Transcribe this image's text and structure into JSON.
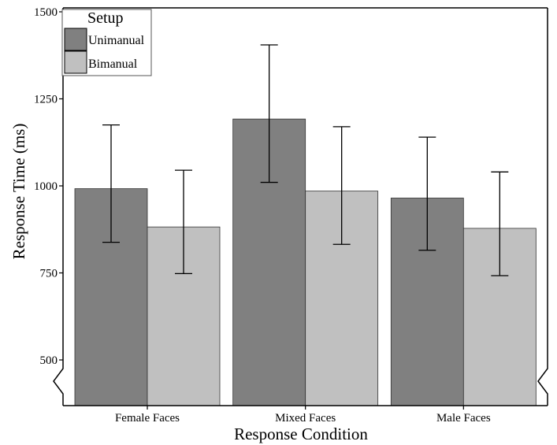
{
  "chart_data": {
    "type": "bar",
    "categories": [
      "Female Faces",
      "Mixed Faces",
      "Male Faces"
    ],
    "series": [
      {
        "name": "Unimanual",
        "color": "#808080",
        "values": [
          992,
          1192,
          965
        ],
        "error_low": [
          838,
          1010,
          815
        ],
        "error_high": [
          1175,
          1405,
          1140
        ]
      },
      {
        "name": "Bimanual",
        "color": "#c0c0c0",
        "values": [
          882,
          985,
          878
        ],
        "error_low": [
          748,
          832,
          742
        ],
        "error_high": [
          1045,
          1170,
          1040
        ]
      }
    ],
    "xlabel": "Response Condition",
    "ylabel": "Response Time (ms)",
    "ylim": [
      500,
      1500
    ],
    "y_ticks": [
      "500",
      "750",
      "1000",
      "1250",
      "1500"
    ],
    "y_axis_break": true,
    "grid": false,
    "legend": {
      "title": "Setup",
      "placement": "top-left"
    }
  }
}
